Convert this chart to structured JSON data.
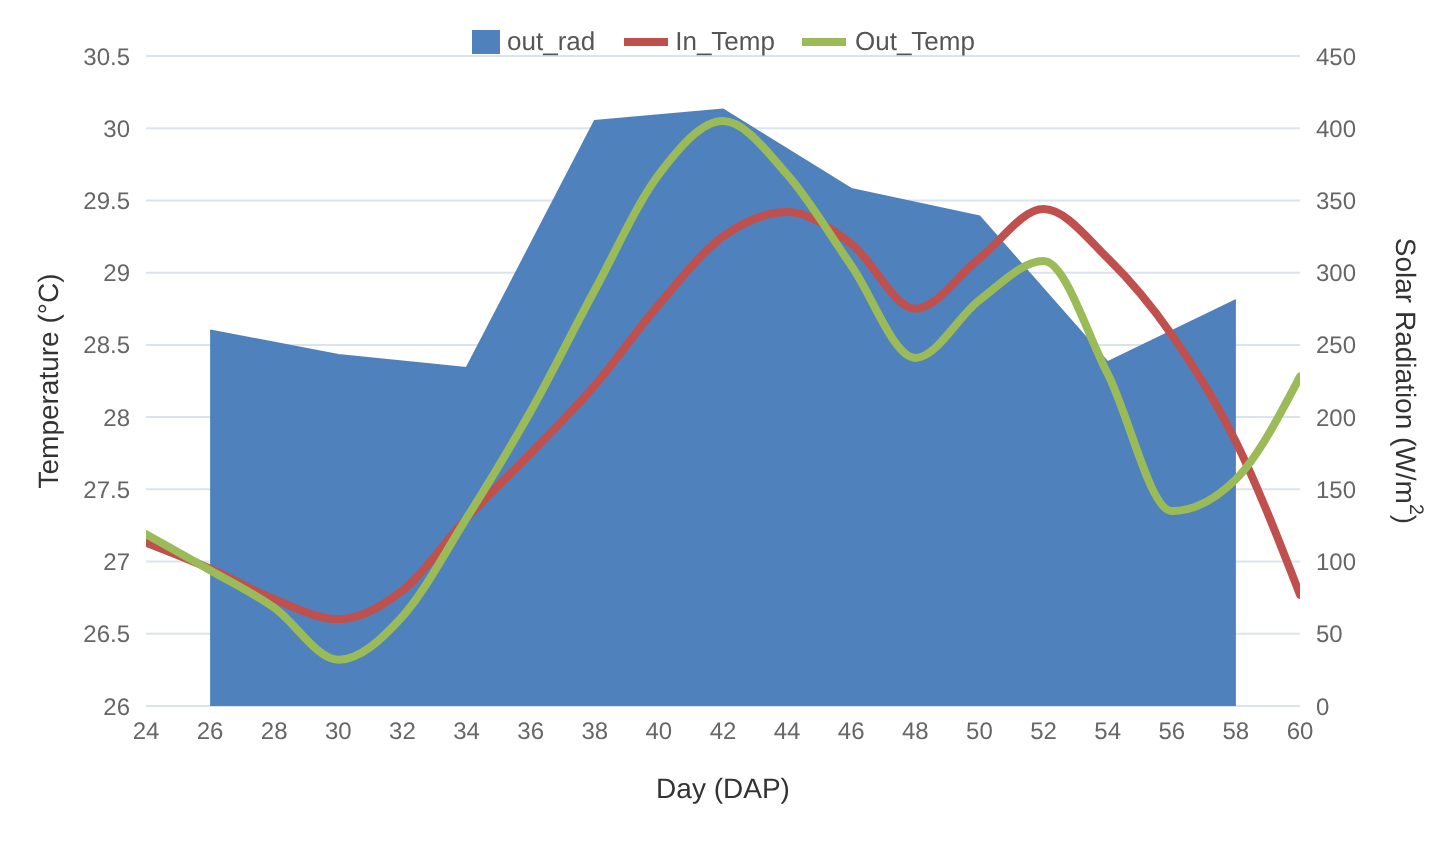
{
  "chart_data": {
    "type": "line",
    "xlabel": "Day (DAP)",
    "ylabel": "Temperature (°C)",
    "y2label": "Solar Radiation (W/m$^{2}$)",
    "x": [
      24,
      26,
      28,
      30,
      32,
      34,
      36,
      38,
      40,
      42,
      44,
      46,
      48,
      50,
      52,
      54,
      56,
      58,
      60
    ],
    "series": [
      {
        "name": "out_rad",
        "type": "area",
        "axis": "y2",
        "color": "#4f81bd",
        "x": [
          26,
          30,
          34,
          38,
          42,
          46,
          50,
          54,
          58
        ],
        "values": [
          260,
          243,
          234,
          405,
          413,
          358,
          339,
          238,
          281
        ]
      },
      {
        "name": "In_Temp",
        "color": "#c0504d",
        "values": [
          27.13,
          26.95,
          26.74,
          26.6,
          26.8,
          27.3,
          27.75,
          28.22,
          28.78,
          29.25,
          29.42,
          29.2,
          28.75,
          29.1,
          29.44,
          29.1,
          28.57,
          27.83,
          26.77
        ]
      },
      {
        "name": "Out_Temp",
        "color": "#9bbb59",
        "values": [
          27.19,
          26.94,
          26.68,
          26.32,
          26.62,
          27.3,
          28.04,
          28.88,
          29.68,
          30.05,
          29.68,
          29.05,
          28.41,
          28.81,
          29.08,
          28.3,
          27.35,
          27.57,
          28.28
        ]
      }
    ],
    "xlim": [
      24,
      60
    ],
    "xticks": [
      24,
      26,
      28,
      30,
      32,
      34,
      36,
      38,
      40,
      42,
      44,
      46,
      48,
      50,
      52,
      54,
      56,
      58,
      60
    ],
    "ylim": [
      26,
      30.5
    ],
    "yticks": [
      26,
      26.5,
      27,
      27.5,
      28,
      28.5,
      29,
      29.5,
      30,
      30.5
    ],
    "y2lim": [
      0,
      450
    ],
    "y2ticks": [
      0,
      50,
      100,
      150,
      200,
      250,
      300,
      350,
      400,
      450
    ],
    "grid": "y",
    "legend": "top",
    "marker": "none",
    "line_style": "solid"
  }
}
